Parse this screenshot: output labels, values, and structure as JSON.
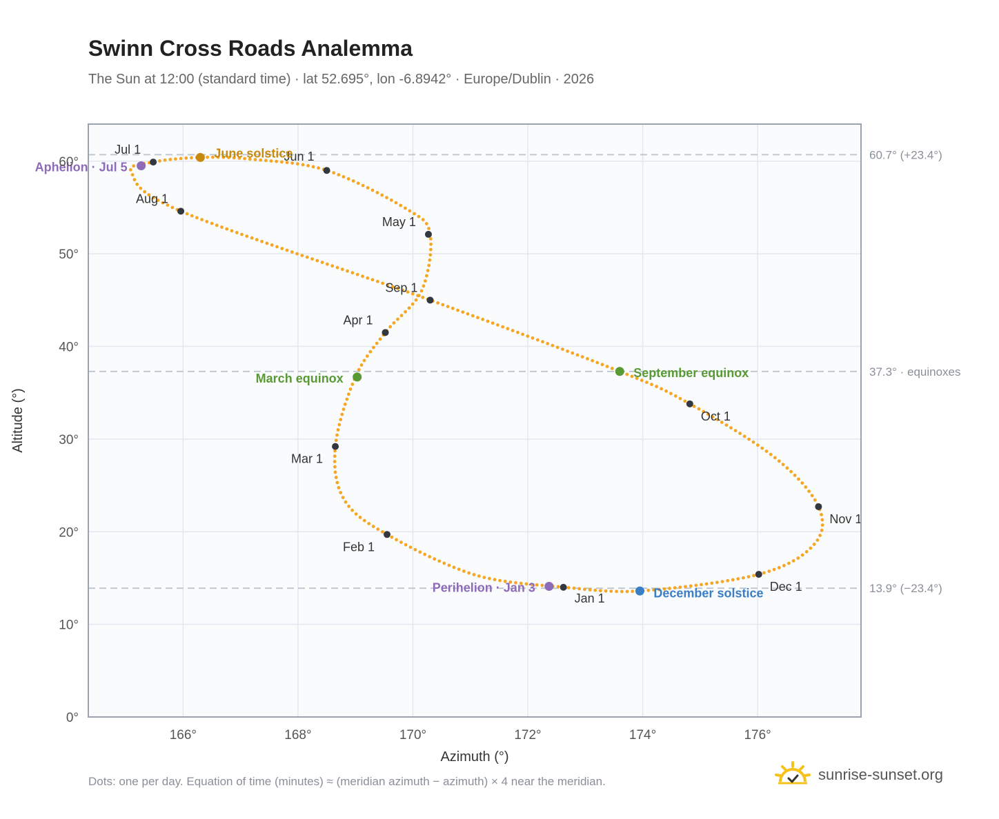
{
  "title": "Swinn Cross Roads Analemma",
  "subtitle": "The Sun at 12:00 (standard time) · lat 52.695°, lon -6.8942° · Europe/Dublin · 2026",
  "footnote": "Dots: one per day. Equation of time (minutes) ≈ (meridian azimuth − azimuth) × 4 near the meridian.",
  "brand": {
    "text": "sunrise-sunset.org",
    "icon": "sun-check-icon"
  },
  "colors": {
    "curve": "#f5a623",
    "month_marker": "#333740",
    "solstice_june": "#c88a0e",
    "solstice_december": "#3a7ec6",
    "equinox": "#5a9a35",
    "apsis": "#8e6bb8",
    "reference_line": "#b9c3cc",
    "plot_background": "#f9fbfd",
    "grid": "#e3e8ee",
    "frame": "#9aa3ae"
  },
  "chart_data": {
    "type": "scatter",
    "title": "Swinn Cross Roads Analemma",
    "xlabel": "Azimuth (°)",
    "ylabel": "Altitude (°)",
    "xlim": [
      164.35,
      177.8
    ],
    "ylim": [
      0,
      64
    ],
    "x_ticks": [
      166,
      168,
      170,
      172,
      174,
      176
    ],
    "x_tick_labels": [
      "166°",
      "168°",
      "170°",
      "172°",
      "174°",
      "176°"
    ],
    "y_ticks": [
      0,
      10,
      20,
      30,
      40,
      50,
      60
    ],
    "y_tick_labels": [
      "0°",
      "10°",
      "20°",
      "30°",
      "40°",
      "50°",
      "60°"
    ],
    "grid": true,
    "series": [
      {
        "kind": "daily",
        "points": [
          [
            172.62,
            14.0
          ],
          [
            171.1,
            15.3
          ],
          [
            169.55,
            19.7
          ],
          [
            168.8,
            23.5
          ],
          [
            168.65,
            29.2
          ],
          [
            169.0,
            36.7
          ],
          [
            169.52,
            41.5
          ],
          [
            170.15,
            46.0
          ],
          [
            170.3,
            52.1
          ],
          [
            169.9,
            54.8
          ],
          [
            168.5,
            59.0
          ],
          [
            167.2,
            60.2
          ],
          [
            166.3,
            60.4
          ],
          [
            165.48,
            59.9
          ],
          [
            165.1,
            58.8
          ],
          [
            165.96,
            54.6
          ],
          [
            170.3,
            45.0
          ],
          [
            173.6,
            37.3
          ],
          [
            174.82,
            33.8
          ],
          [
            176.3,
            28.0
          ],
          [
            177.06,
            22.7
          ],
          [
            176.98,
            18.6
          ],
          [
            176.02,
            15.4
          ],
          [
            173.95,
            13.6
          ],
          [
            172.62,
            14.0
          ]
        ]
      }
    ],
    "month_markers": [
      {
        "label": "Jan 1",
        "x": 172.62,
        "y": 14.0
      },
      {
        "label": "Feb 1",
        "x": 169.55,
        "y": 19.7
      },
      {
        "label": "Mar 1",
        "x": 168.65,
        "y": 29.2
      },
      {
        "label": "Apr 1",
        "x": 169.52,
        "y": 41.5
      },
      {
        "label": "May 1",
        "x": 170.27,
        "y": 52.1
      },
      {
        "label": "Jun 1",
        "x": 168.5,
        "y": 59.0
      },
      {
        "label": "Jul 1",
        "x": 165.48,
        "y": 59.9
      },
      {
        "label": "Aug 1",
        "x": 165.96,
        "y": 54.6
      },
      {
        "label": "Sep 1",
        "x": 170.3,
        "y": 45.0
      },
      {
        "label": "Oct 1",
        "x": 174.82,
        "y": 33.8
      },
      {
        "label": "Nov 1",
        "x": 177.06,
        "y": 22.7
      },
      {
        "label": "Dec 1",
        "x": 176.02,
        "y": 15.4
      }
    ],
    "events": [
      {
        "label": "June solstice",
        "x": 166.3,
        "y": 60.4,
        "kind": "solstice_june"
      },
      {
        "label": "December solstice",
        "x": 173.95,
        "y": 13.6,
        "kind": "solstice_december"
      },
      {
        "label": "March equinox",
        "x": 169.03,
        "y": 36.7,
        "kind": "equinox"
      },
      {
        "label": "September equinox",
        "x": 173.6,
        "y": 37.3,
        "kind": "equinox"
      },
      {
        "label": "Aphelion · Jul 5",
        "x": 165.27,
        "y": 59.5,
        "kind": "apsis"
      },
      {
        "label": "Perihelion · Jan 3",
        "x": 172.37,
        "y": 14.1,
        "kind": "apsis"
      }
    ],
    "reference_lines": [
      {
        "y": 60.7,
        "label": "60.7° (+23.4°)"
      },
      {
        "y": 37.3,
        "label": "37.3° · equinoxes"
      },
      {
        "y": 13.9,
        "label": "13.9° (−23.4°)"
      }
    ]
  }
}
